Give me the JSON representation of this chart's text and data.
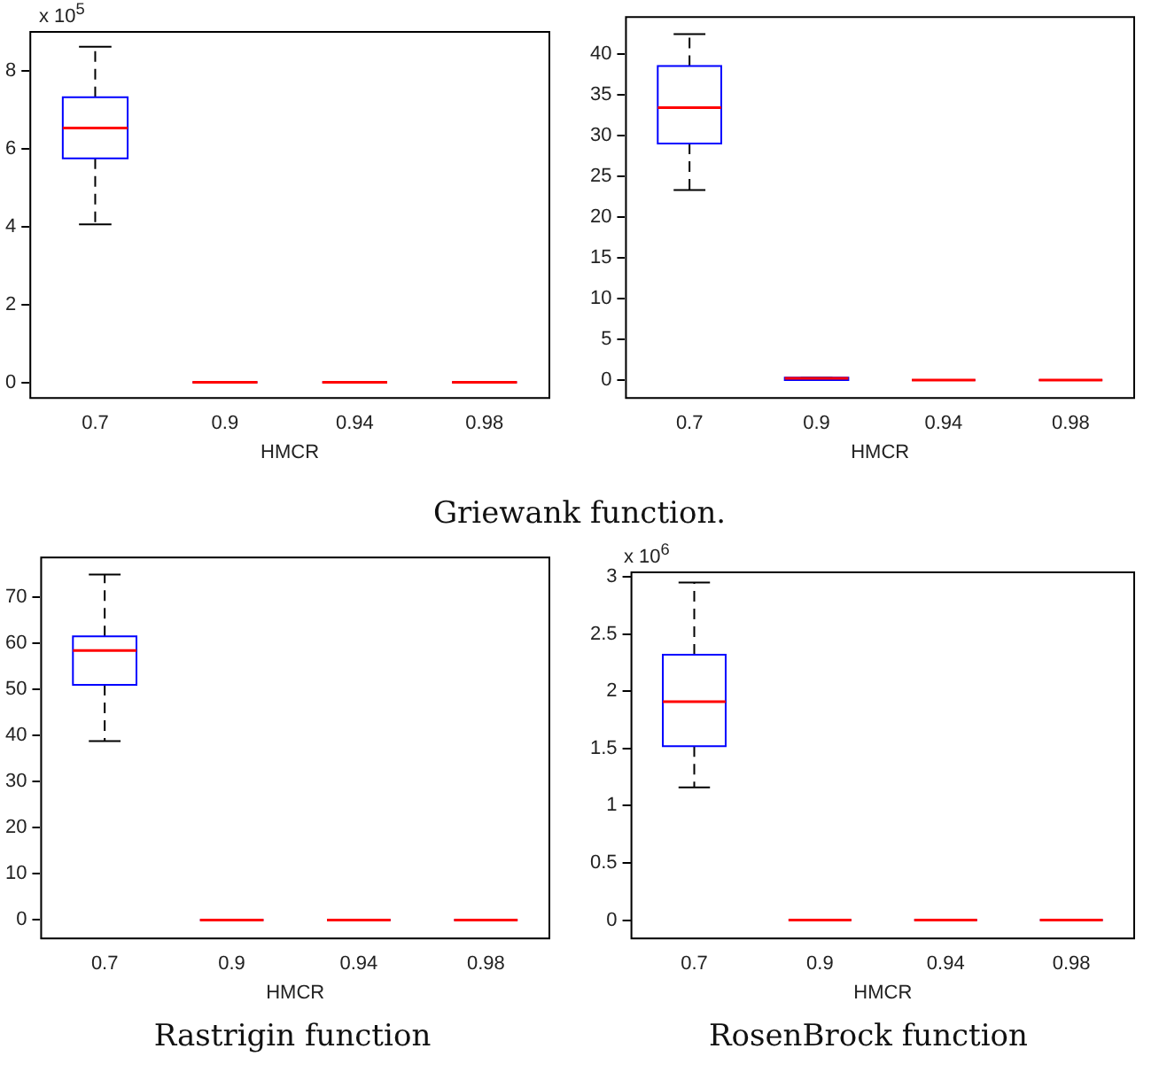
{
  "chart_data": [
    {
      "type": "box",
      "ylabel": "x 10$^{5}$",
      "xlabel": "HMCR",
      "categories": [
        "0.7",
        "0.9",
        "0.94",
        "0.98"
      ],
      "ylim": [
        -0.4,
        9
      ],
      "yticks": [
        0,
        2,
        4,
        6,
        8
      ],
      "grid": false,
      "annotations": [
        "Griewank function."
      ],
      "boxes": [
        {
          "low": 4.06,
          "q1": 5.75,
          "median": 6.53,
          "q3": 7.32,
          "high": 8.62
        },
        {
          "low": 0,
          "q1": 0,
          "median": 0,
          "q3": 0,
          "high": 0
        },
        {
          "low": 0,
          "q1": 0,
          "median": 0,
          "q3": 0,
          "high": 0
        },
        {
          "low": 0,
          "q1": 0,
          "median": 0,
          "q3": 0,
          "high": 0
        }
      ]
    },
    {
      "type": "box",
      "xlabel": "HMCR",
      "categories": [
        "0.7",
        "0.9",
        "0.94",
        "0.98"
      ],
      "ylim": [
        -2.2,
        44.5
      ],
      "yticks": [
        0,
        5,
        10,
        15,
        20,
        25,
        30,
        35,
        40
      ],
      "grid": false,
      "boxes": [
        {
          "low": 23.3,
          "q1": 29.0,
          "median": 33.4,
          "q3": 38.5,
          "high": 42.4
        },
        {
          "low": 0,
          "q1": 0,
          "median": 0.2,
          "q3": 0.3,
          "high": 0.3
        },
        {
          "low": 0,
          "q1": 0,
          "median": 0,
          "q3": 0,
          "high": 0
        },
        {
          "low": 0,
          "q1": 0,
          "median": 0,
          "q3": 0,
          "high": 0
        }
      ]
    },
    {
      "type": "box",
      "xlabel": "HMCR",
      "categories": [
        "0.7",
        "0.9",
        "0.94",
        "0.98"
      ],
      "ylim": [
        -4,
        78.6
      ],
      "yticks": [
        0,
        10,
        20,
        30,
        40,
        50,
        60,
        70
      ],
      "grid": false,
      "annotations": [
        "Rastrigin function"
      ],
      "boxes": [
        {
          "low": 38.8,
          "q1": 51.0,
          "median": 58.4,
          "q3": 61.5,
          "high": 74.9
        },
        {
          "low": 0,
          "q1": 0,
          "median": 0,
          "q3": 0,
          "high": 0
        },
        {
          "low": 0,
          "q1": 0,
          "median": 0,
          "q3": 0,
          "high": 0
        },
        {
          "low": 0,
          "q1": 0,
          "median": 0,
          "q3": 0,
          "high": 0
        }
      ]
    },
    {
      "type": "box",
      "ylabel": "x 10$^{6}$",
      "xlabel": "HMCR",
      "categories": [
        "0.7",
        "0.9",
        "0.94",
        "0.98"
      ],
      "ylim": [
        -0.16,
        3.04
      ],
      "yticks": [
        0,
        0.5,
        1,
        1.5,
        2,
        2.5,
        3
      ],
      "grid": false,
      "annotations": [
        "RosenBrock function"
      ],
      "boxes": [
        {
          "low": 1.16,
          "q1": 1.52,
          "median": 1.91,
          "q3": 2.32,
          "high": 2.95
        },
        {
          "low": 0,
          "q1": 0,
          "median": 0,
          "q3": 0,
          "high": 0
        },
        {
          "low": 0,
          "q1": 0,
          "median": 0,
          "q3": 0,
          "high": 0
        },
        {
          "low": 0,
          "q1": 0,
          "median": 0,
          "q3": 0,
          "high": 0
        }
      ]
    }
  ]
}
